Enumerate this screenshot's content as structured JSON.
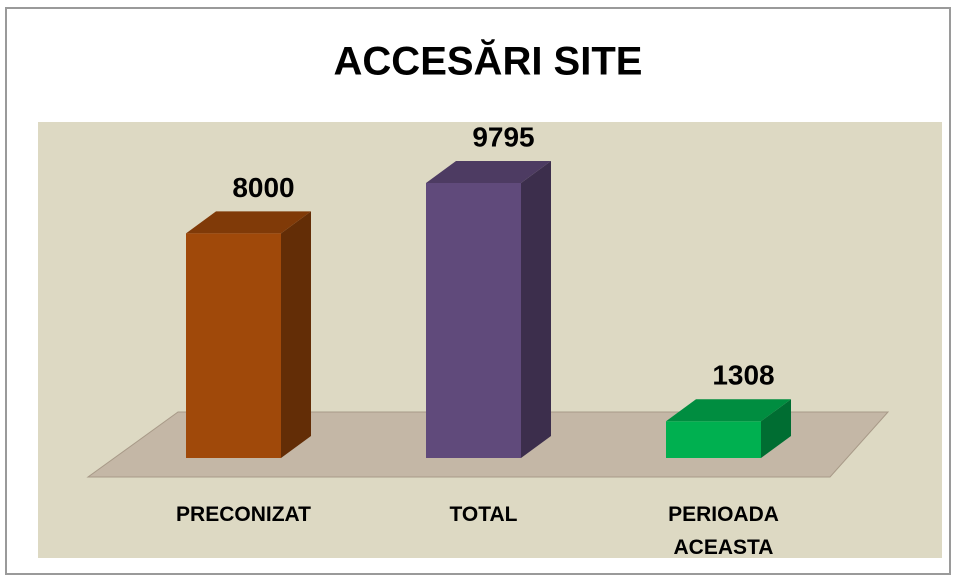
{
  "chart_data": {
    "type": "bar3d",
    "title": "ACCESĂRI SITE",
    "categories": [
      "PRECONIZAT",
      "TOTAL",
      "PERIOADA ACEASTA"
    ],
    "values": [
      8000,
      9795,
      1308
    ],
    "colors": [
      "#a0490a",
      "#604a7b",
      "#00b050"
    ]
  }
}
